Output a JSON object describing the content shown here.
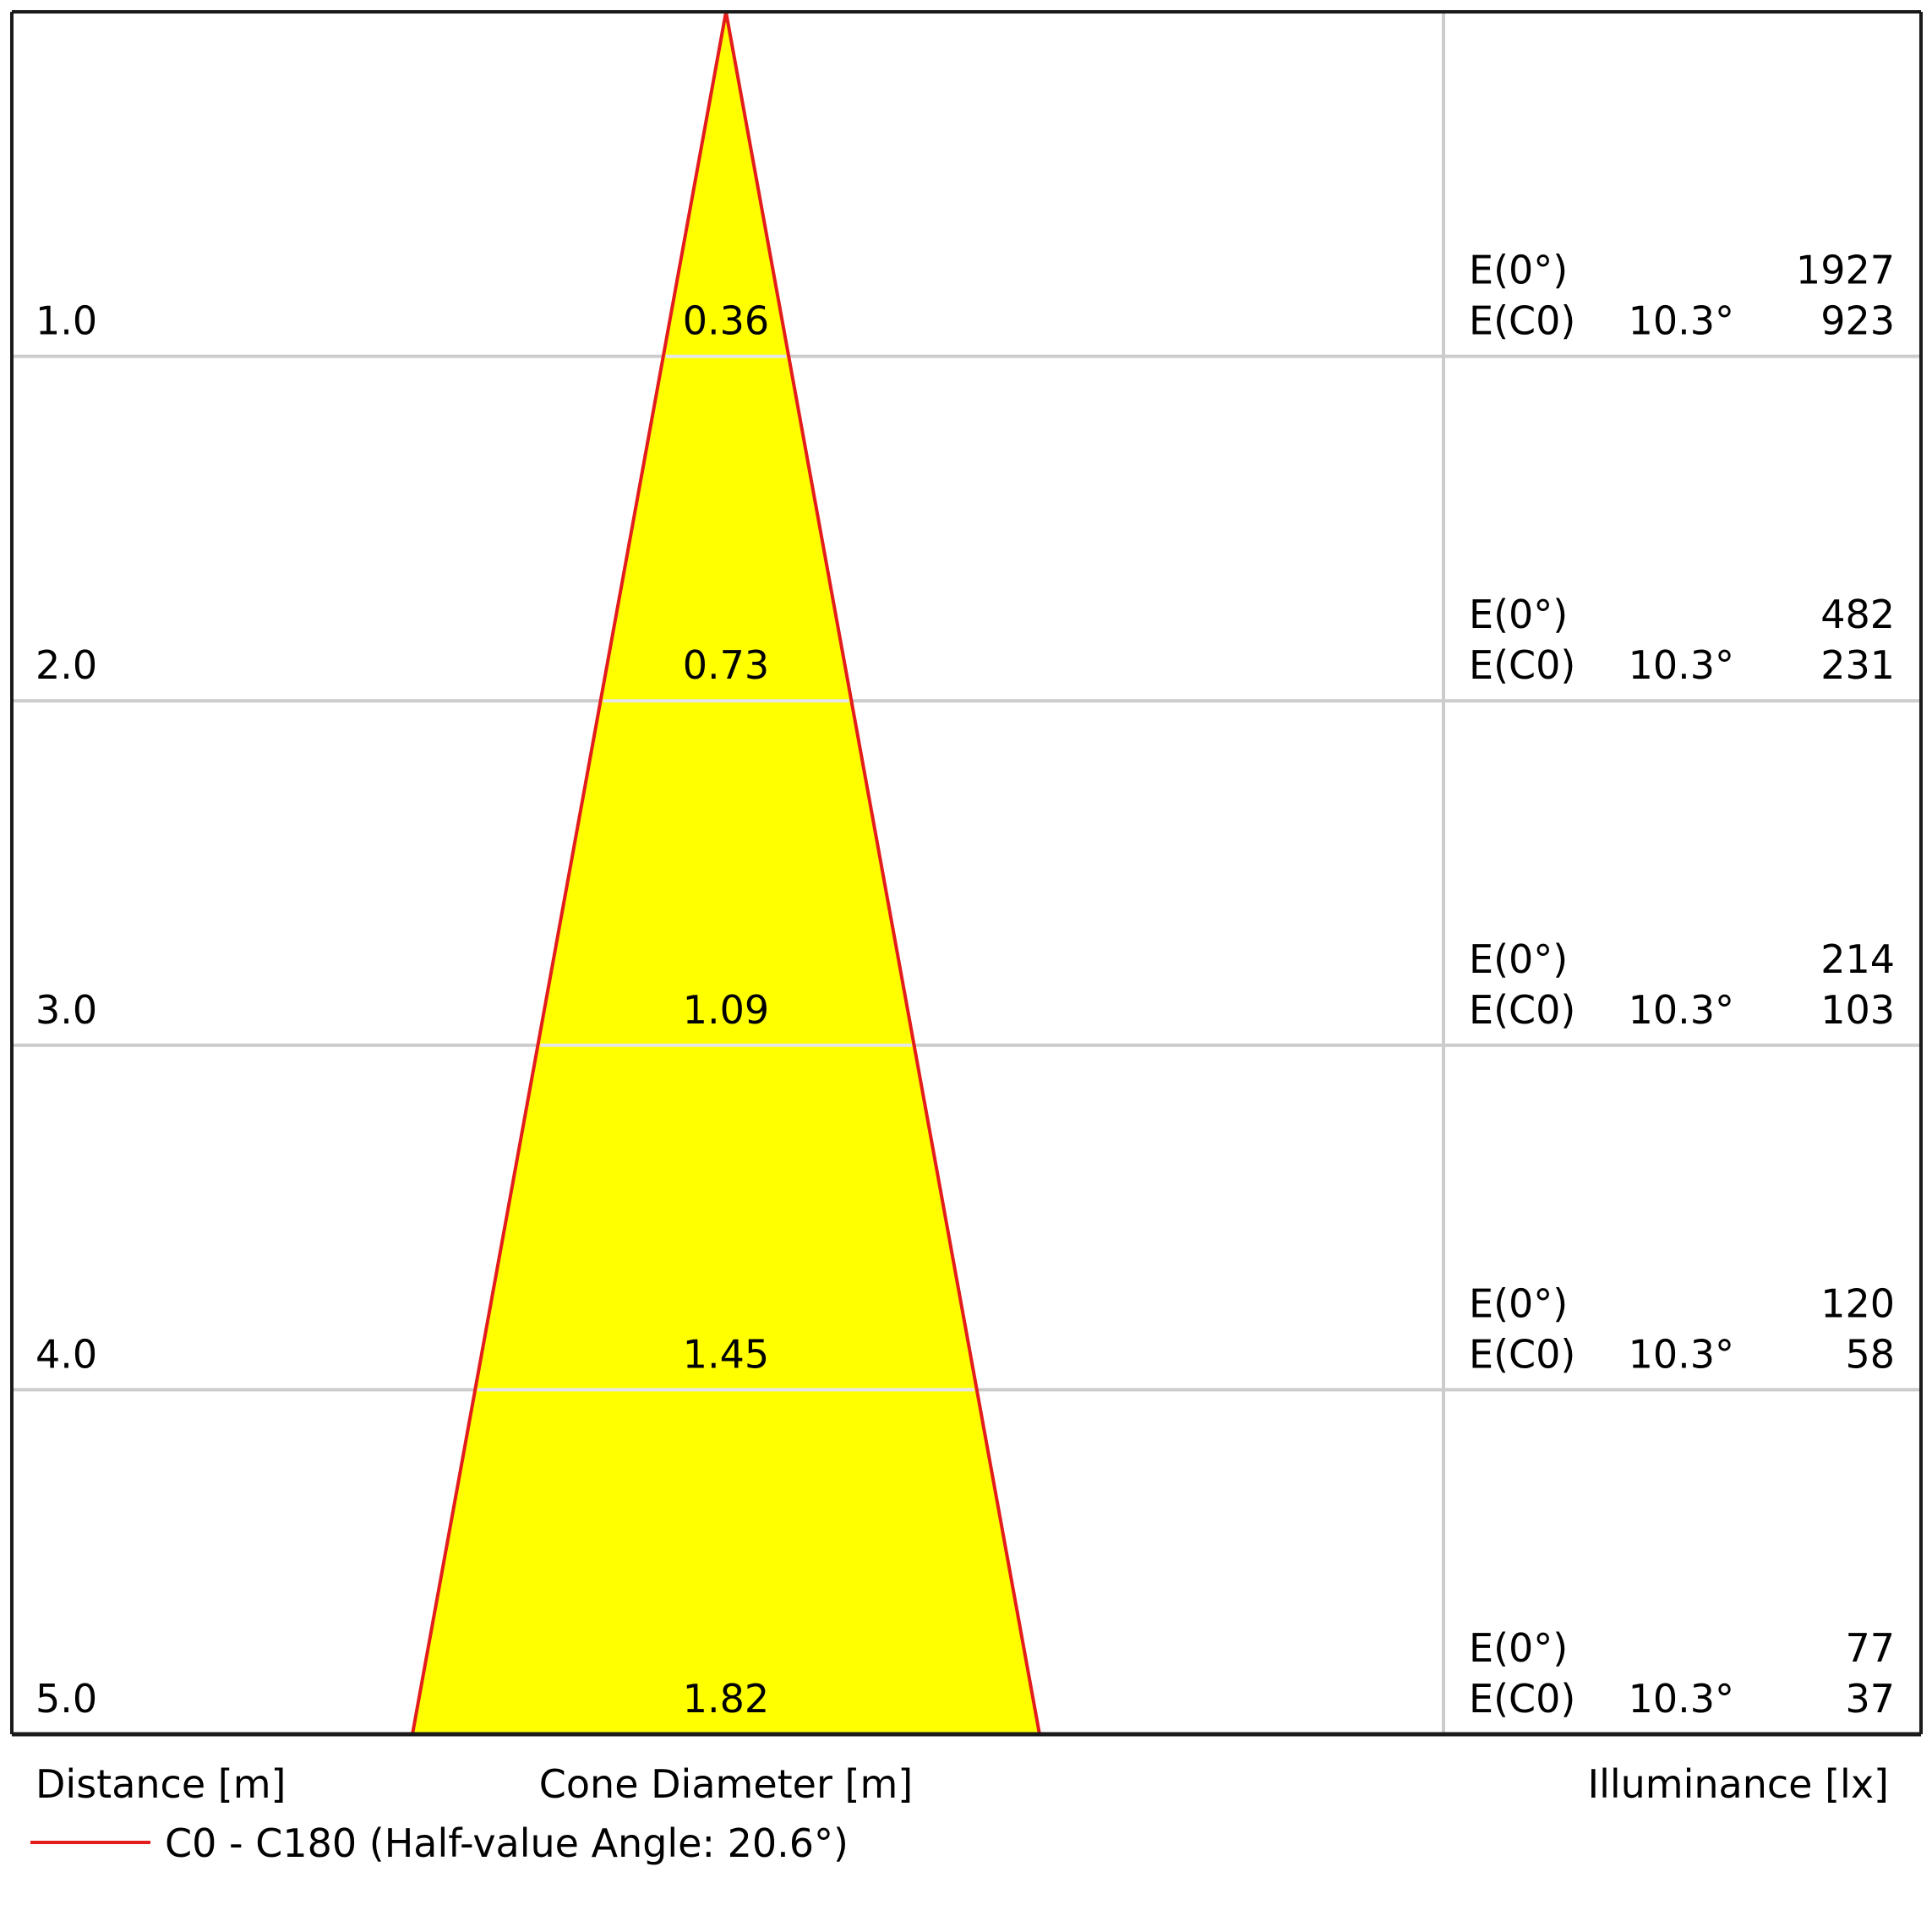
{
  "chart_data": {
    "type": "cone_diagram",
    "colors": {
      "cone_fill": "#ffff00",
      "cone_outline": "#e31c1c",
      "grid": "#cccccc",
      "frame": "#1a1a1a"
    },
    "distance_unit_label": "Distance [m]",
    "diameter_unit_label": "Cone Diameter [m]",
    "illuminance_unit_label": "Illuminance [lx]",
    "legend": {
      "label": "C0 - C180 (Half-value Angle: 20.6°)"
    },
    "rows": [
      {
        "distance": "1.0",
        "diameter": "0.36",
        "e0_label": "E(0°)",
        "e0_value": "1927",
        "ec_label": "E(C0)",
        "ec_angle": "10.3°",
        "ec_value": "923"
      },
      {
        "distance": "2.0",
        "diameter": "0.73",
        "e0_label": "E(0°)",
        "e0_value": "482",
        "ec_label": "E(C0)",
        "ec_angle": "10.3°",
        "ec_value": "231"
      },
      {
        "distance": "3.0",
        "diameter": "1.09",
        "e0_label": "E(0°)",
        "e0_value": "214",
        "ec_label": "E(C0)",
        "ec_angle": "10.3°",
        "ec_value": "103"
      },
      {
        "distance": "4.0",
        "diameter": "1.45",
        "e0_label": "E(0°)",
        "e0_value": "120",
        "ec_label": "E(C0)",
        "ec_angle": "10.3°",
        "ec_value": "58"
      },
      {
        "distance": "5.0",
        "diameter": "1.82",
        "e0_label": "E(0°)",
        "e0_value": "77",
        "ec_label": "E(C0)",
        "ec_angle": "10.3°",
        "ec_value": "37"
      }
    ]
  }
}
